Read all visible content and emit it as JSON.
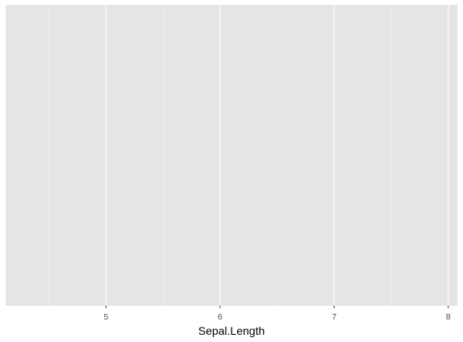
{
  "chart_data": {
    "type": "scatter",
    "title": "",
    "xlabel": "Sepal.Length",
    "ylabel": "",
    "xlim": [
      4.12,
      8.08
    ],
    "x_ticks": [
      5,
      6,
      7,
      8
    ],
    "x_tick_labels": [
      "5",
      "6",
      "7",
      "8"
    ],
    "x_minor_ticks": [
      4.5,
      5.5,
      6.5,
      7.5
    ],
    "y_ticks": [],
    "series": [],
    "grid": true,
    "legend": "none",
    "colors": {
      "panel_background": "#e5e5e5",
      "grid_major": "#ffffff",
      "grid_minor": "#f2f2f2",
      "tick_text": "#4d4d4d",
      "axis_title": "#000000"
    }
  }
}
